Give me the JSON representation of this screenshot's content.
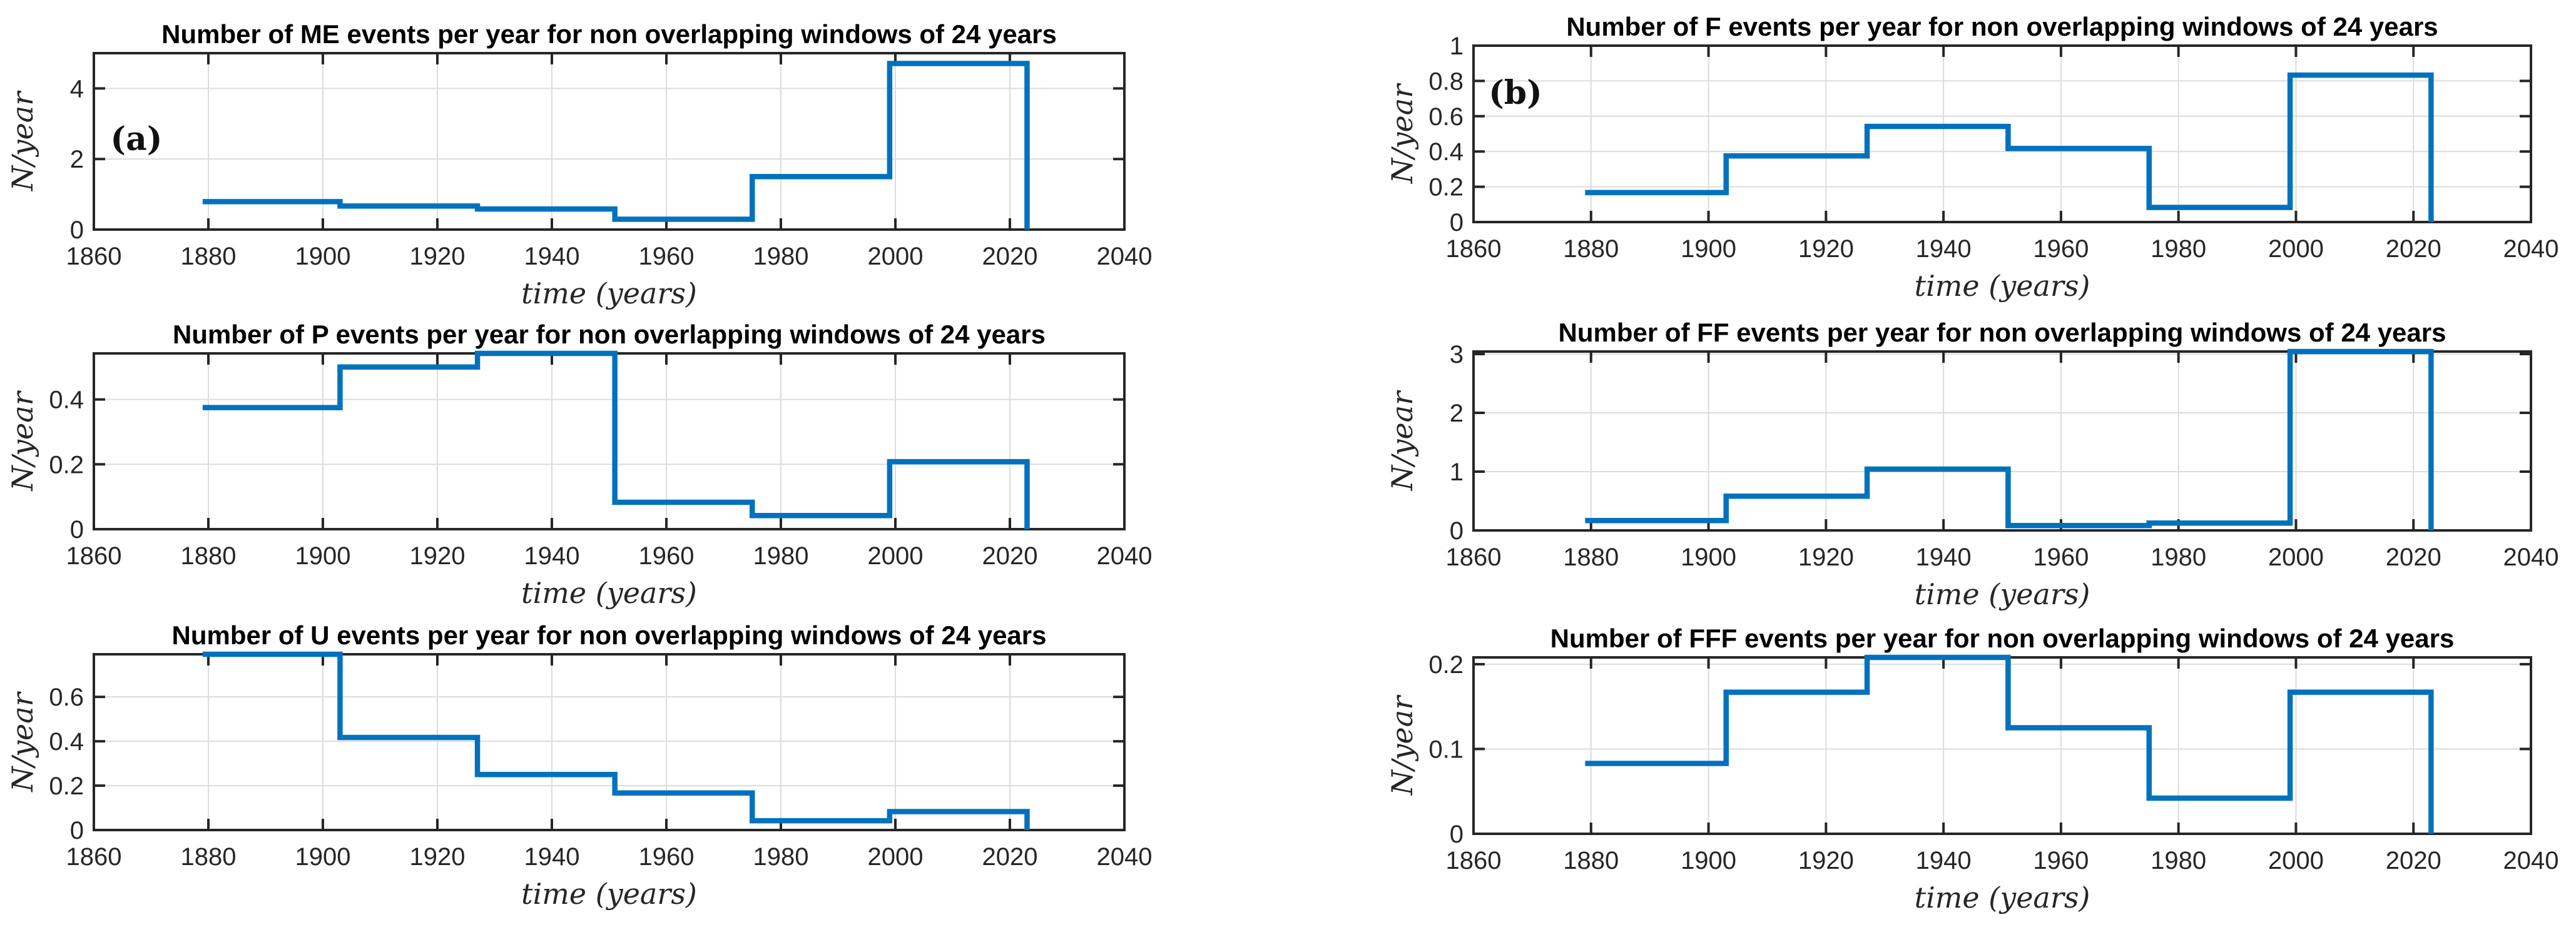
{
  "figure": {
    "background": "#FFFFFF",
    "xlabel": "time (years)",
    "ylabel": "N/year",
    "panel_labels": [
      "(a)",
      "(b)"
    ],
    "colors": {
      "line": "#0072BD",
      "axis": "#262626",
      "grid": "#DCDCDC",
      "title": "#000000",
      "tick_text": "#262626"
    }
  },
  "chart_data": [
    {
      "id": "me-events",
      "panel": "a",
      "type": "line",
      "subtype": "stairs",
      "title": "Number of ME events per year for non overlapping windows of 24 years",
      "xlabel": "time (years)",
      "ylabel": "N/year",
      "window_years": 24,
      "x_window_edges": [
        1879,
        1903,
        1927,
        1951,
        1975,
        1999,
        2023
      ],
      "values_per_window": [
        0.792,
        0.667,
        0.583,
        0.292,
        1.5,
        4.708
      ],
      "end_value": 0,
      "xlim": [
        1860,
        2040
      ],
      "ylim": [
        0,
        5
      ],
      "xticks": [
        1860,
        1880,
        1900,
        1920,
        1940,
        1960,
        1980,
        2000,
        2020,
        2040
      ],
      "yticks": [
        0,
        2,
        4
      ],
      "ytick_labels": [
        "0",
        "2",
        "4"
      ],
      "grid": true,
      "annotation": "(a)"
    },
    {
      "id": "p-events",
      "panel": "a",
      "type": "line",
      "subtype": "stairs",
      "title": "Number of P events per year for non overlapping windows of 24 years",
      "xlabel": "time (years)",
      "ylabel": "N/year",
      "window_years": 24,
      "x_window_edges": [
        1879,
        1903,
        1927,
        1951,
        1975,
        1999,
        2023
      ],
      "values_per_window": [
        0.375,
        0.5,
        0.542,
        0.083,
        0.042,
        0.208
      ],
      "end_value": 0,
      "xlim": [
        1860,
        2040
      ],
      "ylim": [
        0,
        0.542
      ],
      "xticks": [
        1860,
        1880,
        1900,
        1920,
        1940,
        1960,
        1980,
        2000,
        2020,
        2040
      ],
      "yticks": [
        0,
        0.2,
        0.4
      ],
      "ytick_labels": [
        "0",
        "0.2",
        "0.4"
      ],
      "grid": true,
      "annotation": null
    },
    {
      "id": "u-events",
      "panel": "a",
      "type": "line",
      "subtype": "stairs",
      "title": "Number of U events per year for non overlapping windows of 24 years",
      "xlabel": "time (years)",
      "ylabel": "N/year",
      "window_years": 24,
      "x_window_edges": [
        1879,
        1903,
        1927,
        1951,
        1975,
        1999,
        2023
      ],
      "values_per_window": [
        0.792,
        0.417,
        0.25,
        0.167,
        0.042,
        0.083
      ],
      "end_value": 0,
      "xlim": [
        1860,
        2040
      ],
      "ylim": [
        0,
        0.792
      ],
      "xticks": [
        1860,
        1880,
        1900,
        1920,
        1940,
        1960,
        1980,
        2000,
        2020,
        2040
      ],
      "yticks": [
        0,
        0.2,
        0.4,
        0.6
      ],
      "ytick_labels": [
        "0",
        "0.2",
        "0.4",
        "0.6"
      ],
      "grid": true,
      "annotation": null
    },
    {
      "id": "f-events",
      "panel": "b",
      "type": "line",
      "subtype": "stairs",
      "title": "Number of F events per year for non overlapping windows of 24 years",
      "xlabel": "time (years)",
      "ylabel": "N/year",
      "window_years": 24,
      "x_window_edges": [
        1879,
        1903,
        1927,
        1951,
        1975,
        1999,
        2023
      ],
      "values_per_window": [
        0.167,
        0.375,
        0.542,
        0.417,
        0.083,
        0.833
      ],
      "end_value": 0,
      "xlim": [
        1860,
        2040
      ],
      "ylim": [
        0,
        1
      ],
      "xticks": [
        1860,
        1880,
        1900,
        1920,
        1940,
        1960,
        1980,
        2000,
        2020,
        2040
      ],
      "yticks": [
        0,
        0.2,
        0.4,
        0.6,
        0.8,
        1
      ],
      "ytick_labels": [
        "0",
        "0.2",
        "0.4",
        "0.6",
        "0.8",
        "1"
      ],
      "grid": true,
      "annotation": "(b)"
    },
    {
      "id": "ff-events",
      "panel": "b",
      "type": "line",
      "subtype": "stairs",
      "title": "Number of FF events per year for non overlapping windows of 24 years",
      "xlabel": "time (years)",
      "ylabel": "N/year",
      "window_years": 24,
      "x_window_edges": [
        1879,
        1903,
        1927,
        1951,
        1975,
        1999,
        2023
      ],
      "values_per_window": [
        0.167,
        0.583,
        1.042,
        0.083,
        0.125,
        3.042
      ],
      "end_value": 0,
      "xlim": [
        1860,
        2040
      ],
      "ylim": [
        0,
        3.042
      ],
      "xticks": [
        1860,
        1880,
        1900,
        1920,
        1940,
        1960,
        1980,
        2000,
        2020,
        2040
      ],
      "yticks": [
        0,
        1,
        2,
        3
      ],
      "ytick_labels": [
        "0",
        "1",
        "2",
        "3"
      ],
      "grid": true,
      "annotation": null
    },
    {
      "id": "fff-events",
      "panel": "b",
      "type": "line",
      "subtype": "stairs",
      "title": "Number of FFF events per year for non overlapping windows of 24 years",
      "xlabel": "time (years)",
      "ylabel": "N/year",
      "window_years": 24,
      "x_window_edges": [
        1879,
        1903,
        1927,
        1951,
        1975,
        1999,
        2023
      ],
      "values_per_window": [
        0.083,
        0.167,
        0.208,
        0.125,
        0.042,
        0.167
      ],
      "end_value": 0,
      "xlim": [
        1860,
        2040
      ],
      "ylim": [
        0,
        0.208
      ],
      "xticks": [
        1860,
        1880,
        1900,
        1920,
        1940,
        1960,
        1980,
        2000,
        2020,
        2040
      ],
      "yticks": [
        0,
        0.1,
        0.2
      ],
      "ytick_labels": [
        "0",
        "0.1",
        "0.2"
      ],
      "grid": true,
      "annotation": null
    }
  ]
}
